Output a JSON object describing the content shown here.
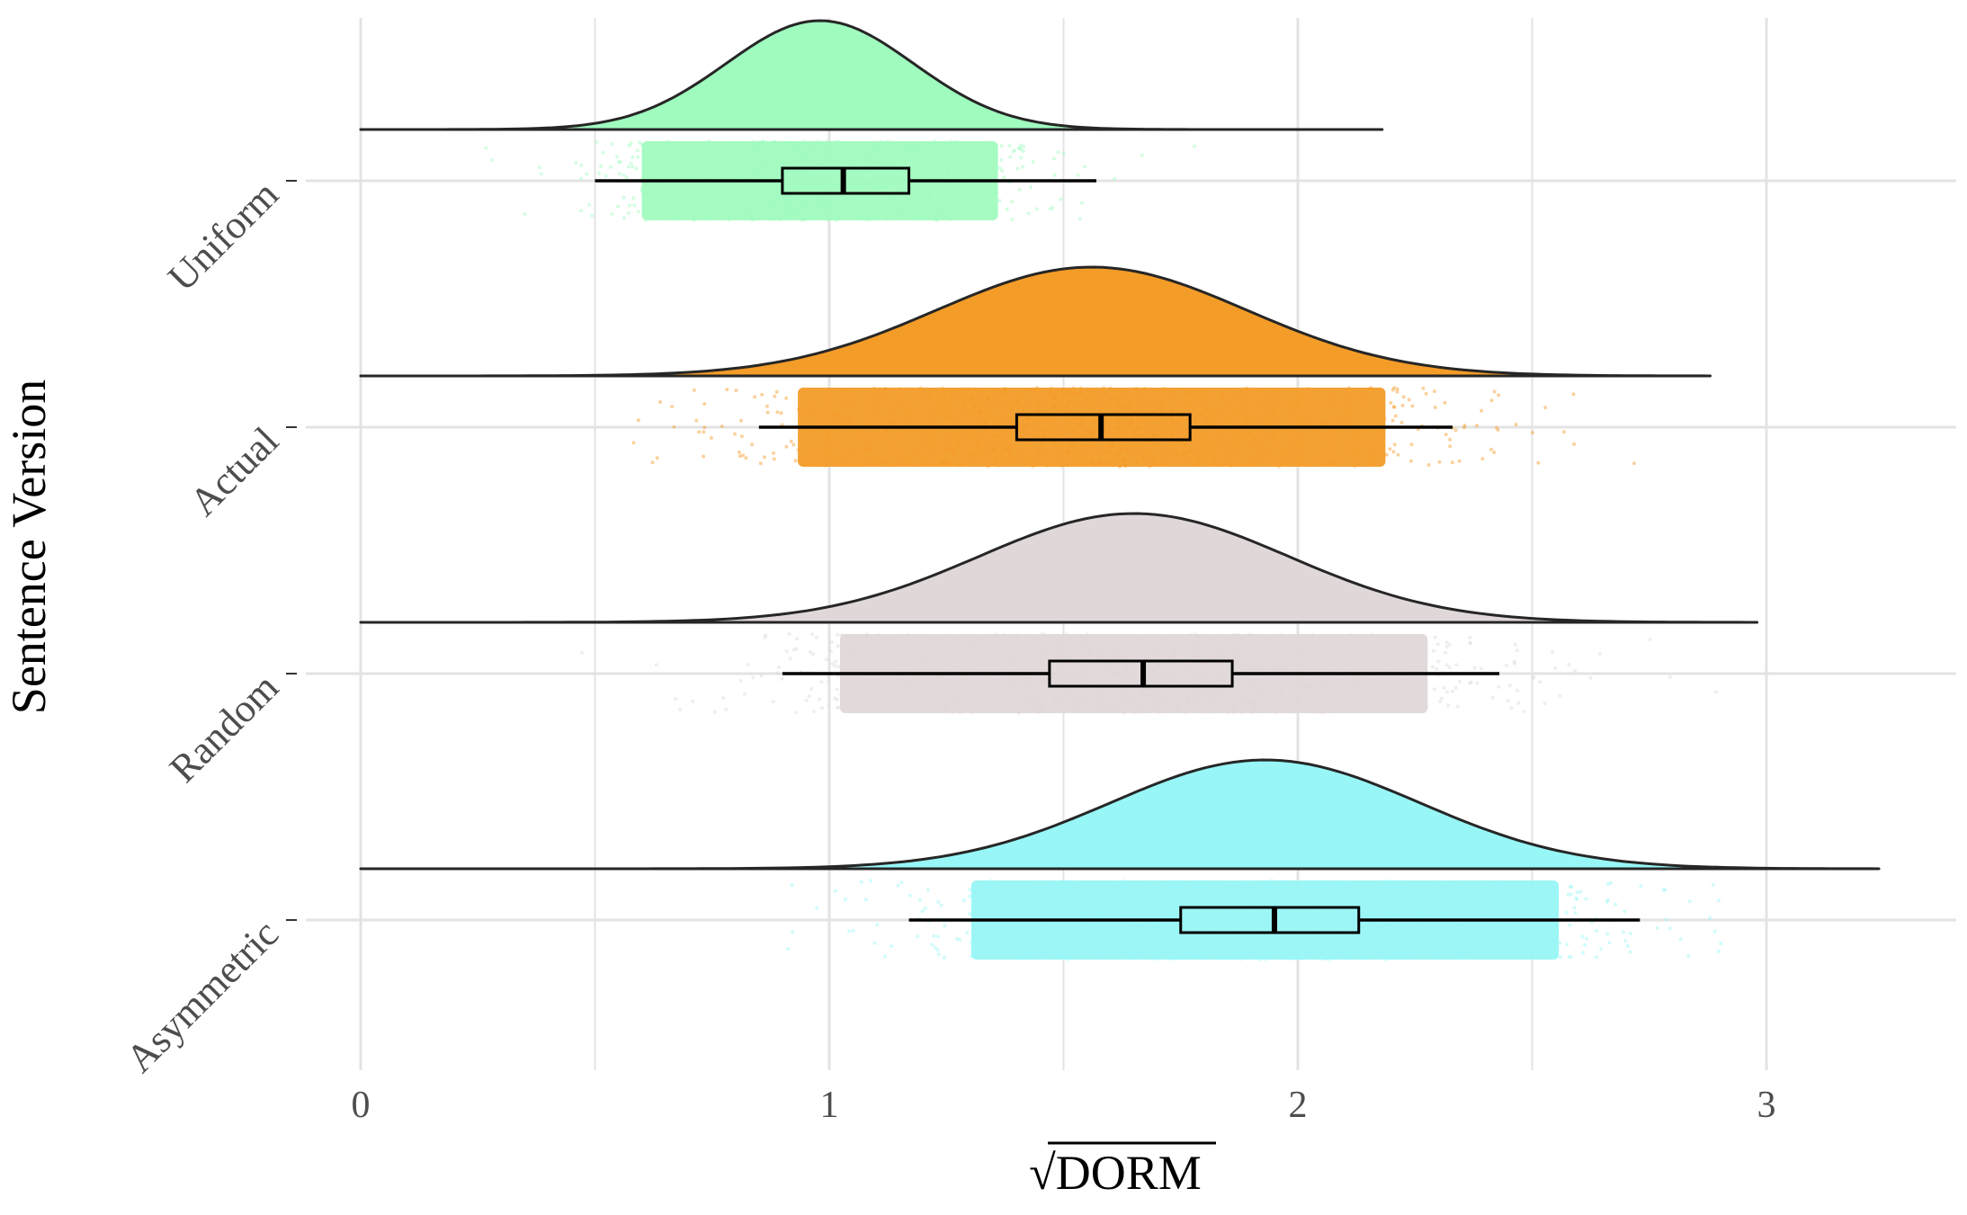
{
  "chart_data": {
    "type": "raincloud",
    "xlabel": "√DORM",
    "ylabel": "Sentence Version",
    "xlim": [
      -0.35,
      3.4
    ],
    "x_ticks": [
      0,
      1,
      2,
      3
    ],
    "x_tick_labels": [
      "0",
      "1",
      "2",
      "3"
    ],
    "grid": true,
    "legend": "none",
    "categories": [
      "Uniform",
      "Actual",
      "Random",
      "Asymmetric"
    ],
    "series": [
      {
        "category": "Uniform",
        "color": "#a0fbbf",
        "density_mean": 0.98,
        "density_sd": 0.2,
        "density_range": [
          0,
          2.18
        ],
        "points_range": [
          0.2,
          2.05
        ],
        "box": {
          "whisker_low": 0.5,
          "q1": 0.9,
          "median": 1.03,
          "q3": 1.17,
          "whisker_high": 1.57
        }
      },
      {
        "category": "Actual",
        "color": "#f39c28",
        "density_mean": 1.56,
        "density_sd": 0.33,
        "density_range": [
          0,
          2.88
        ],
        "points_range": [
          0.45,
          2.88
        ],
        "box": {
          "whisker_low": 0.85,
          "q1": 1.4,
          "median": 1.58,
          "q3": 1.77,
          "whisker_high": 2.33
        }
      },
      {
        "category": "Random",
        "color": "#e0d8d8",
        "density_mean": 1.65,
        "density_sd": 0.33,
        "density_range": [
          0,
          2.98
        ],
        "points_range": [
          0.35,
          2.98
        ],
        "box": {
          "whisker_low": 0.9,
          "q1": 1.47,
          "median": 1.67,
          "q3": 1.86,
          "whisker_high": 2.43
        }
      },
      {
        "category": "Asymmetric",
        "color": "#98f6f6",
        "density_mean": 1.93,
        "density_sd": 0.33,
        "density_range": [
          0,
          3.24
        ],
        "points_range": [
          0.4,
          3.24
        ],
        "box": {
          "whisker_low": 1.17,
          "q1": 1.75,
          "median": 1.95,
          "q3": 2.13,
          "whisker_high": 2.73
        }
      }
    ]
  }
}
